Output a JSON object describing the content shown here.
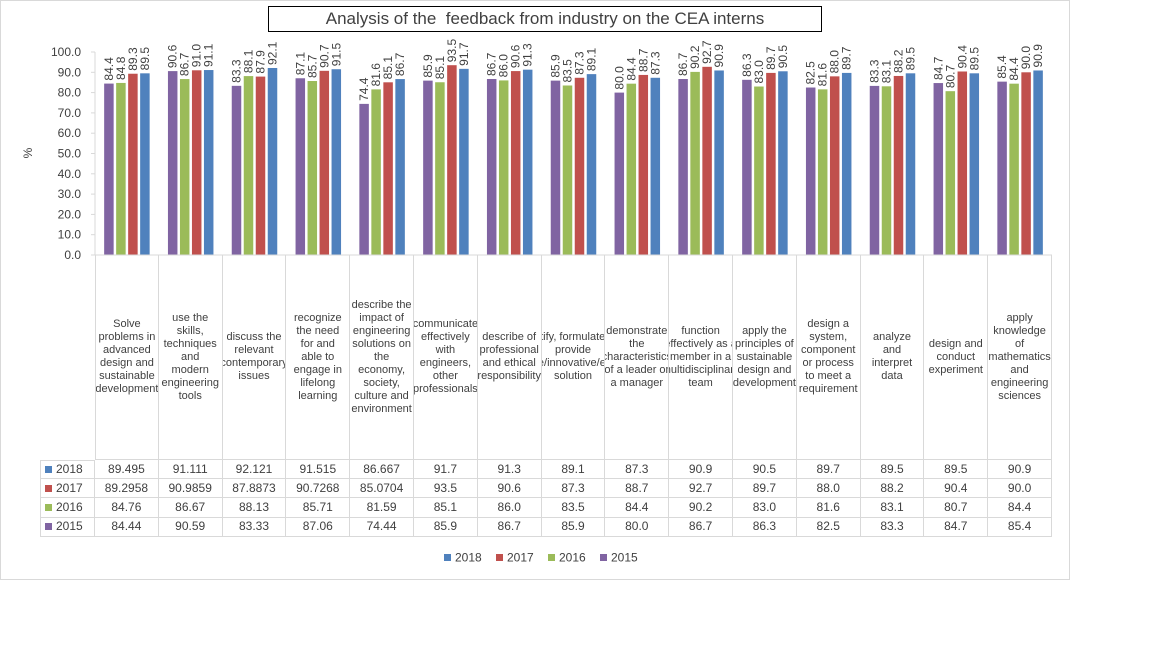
{
  "chart_data": {
    "type": "bar",
    "title": "Analysis of the  feedback from industry on the CEA interns",
    "y_label": "%",
    "categories": [
      "Solve problems in advanced design and sustainable development",
      "use the skills, techniques and modern engineering tools",
      "discuss the relevant contemporary issues",
      "recognize the need for and able to engage in lifelong learning",
      "describe the impact of engineering solutions on the economy, society, culture and environment",
      "communicate effectively with engineers, other professionals",
      "describe of professional and ethical responsibility",
      "identify, formulate and provide creative/innovative/effective solution",
      "demonstrate the characteristics of a leader or a manager",
      "function effectively as a member in a multidisciplinary team",
      "apply the principles of sustainable design and development",
      "design a system, component or process to meet a requirement",
      "analyze and interpret data",
      "design and conduct experiment",
      "apply knowledge of mathematics and engineering sciences"
    ],
    "series": [
      {
        "name": "2018",
        "color": "#4f81bd",
        "values": [
          89.495,
          91.111,
          92.121,
          91.515,
          86.667,
          91.7,
          91.3,
          89.1,
          87.3,
          90.9,
          90.5,
          89.7,
          89.5,
          89.5,
          90.9
        ],
        "value_labels": [
          "89.5",
          "91.1",
          "92.1",
          "91.5",
          "86.7",
          "91.7",
          "91.3",
          "89.1",
          "87.3",
          "90.9",
          "90.5",
          "89.7",
          "89.5",
          "89.5",
          "90.9"
        ],
        "table_labels": [
          "89.495",
          "91.111",
          "92.121",
          "91.515",
          "86.667",
          "91.7",
          "91.3",
          "89.1",
          "87.3",
          "90.9",
          "90.5",
          "89.7",
          "89.5",
          "89.5",
          "90.9"
        ]
      },
      {
        "name": "2017",
        "color": "#c0504d",
        "values": [
          89.2958,
          90.9859,
          87.8873,
          90.7268,
          85.0704,
          93.5,
          90.6,
          87.3,
          88.7,
          92.7,
          89.7,
          88.0,
          88.2,
          90.4,
          90.0
        ],
        "value_labels": [
          "89.3",
          "91.0",
          "87.9",
          "90.7",
          "85.1",
          "93.5",
          "90.6",
          "87.3",
          "88.7",
          "92.7",
          "89.7",
          "88.0",
          "88.2",
          "90.4",
          "90.0"
        ],
        "table_labels": [
          "89.2958",
          "90.9859",
          "87.8873",
          "90.7268",
          "85.0704",
          "93.5",
          "90.6",
          "87.3",
          "88.7",
          "92.7",
          "89.7",
          "88.0",
          "88.2",
          "90.4",
          "90.0"
        ]
      },
      {
        "name": "2016",
        "color": "#9bbb59",
        "values": [
          84.76,
          86.67,
          88.13,
          85.71,
          81.59,
          85.1,
          86.0,
          83.5,
          84.4,
          90.2,
          83.0,
          81.6,
          83.1,
          80.7,
          84.4
        ],
        "value_labels": [
          "84.8",
          "86.7",
          "88.1",
          "85.7",
          "81.6",
          "85.1",
          "86.0",
          "83.5",
          "84.4",
          "90.2",
          "83.0",
          "81.6",
          "83.1",
          "80.7",
          "84.4"
        ],
        "table_labels": [
          "84.76",
          "86.67",
          "88.13",
          "85.71",
          "81.59",
          "85.1",
          "86.0",
          "83.5",
          "84.4",
          "90.2",
          "83.0",
          "81.6",
          "83.1",
          "80.7",
          "84.4"
        ]
      },
      {
        "name": "2015",
        "color": "#8064a2",
        "values": [
          84.44,
          90.59,
          83.33,
          87.06,
          74.44,
          85.9,
          86.7,
          85.9,
          80.0,
          86.7,
          86.3,
          82.5,
          83.3,
          84.7,
          85.4
        ],
        "value_labels": [
          "84.4",
          "90.6",
          "83.3",
          "87.1",
          "74.4",
          "85.9",
          "86.7",
          "85.9",
          "80.0",
          "86.7",
          "86.3",
          "82.5",
          "83.3",
          "84.7",
          "85.4"
        ],
        "table_labels": [
          "84.44",
          "90.59",
          "83.33",
          "87.06",
          "74.44",
          "85.9",
          "86.7",
          "85.9",
          "80.0",
          "86.7",
          "86.3",
          "82.5",
          "83.3",
          "84.7",
          "85.4"
        ]
      }
    ],
    "ylim": [
      0,
      100
    ],
    "yticks": [
      {
        "value": 0,
        "label": "0.0"
      },
      {
        "value": 10,
        "label": "10.0"
      },
      {
        "value": 20,
        "label": "20.0"
      },
      {
        "value": 30,
        "label": "30.0"
      },
      {
        "value": 40,
        "label": "40.0"
      },
      {
        "value": 50,
        "label": "50.0"
      },
      {
        "value": 60,
        "label": "60.0"
      },
      {
        "value": 70,
        "label": "70.0"
      },
      {
        "value": 80,
        "label": "80.0"
      },
      {
        "value": 90,
        "label": "90.0"
      },
      {
        "value": 100,
        "label": "100.0"
      }
    ],
    "grid": false,
    "legend": "bottom"
  }
}
